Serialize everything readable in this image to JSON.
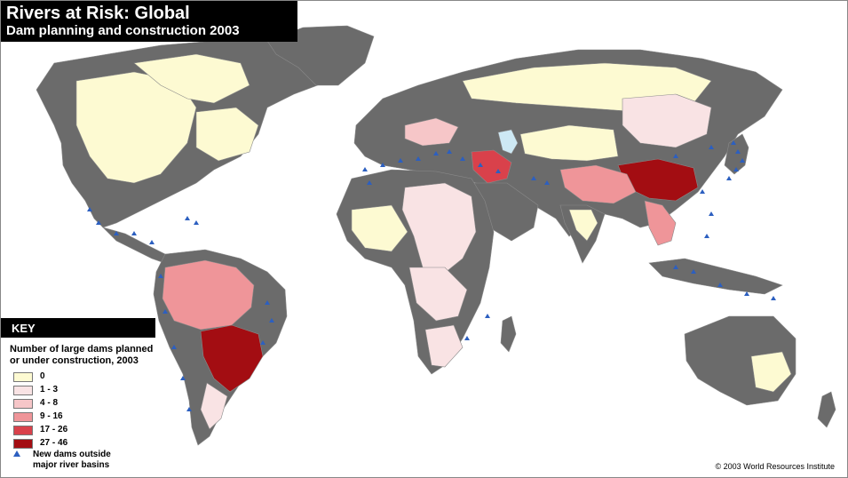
{
  "title": {
    "line1": "Rivers at Risk: Global",
    "line2": "Dam planning and construction 2003"
  },
  "key": {
    "heading": "KEY",
    "description_line1": "Number of large dams planned",
    "description_line2": "or under construction, 2003",
    "classes": [
      {
        "label": "0",
        "color": "#fdfad2"
      },
      {
        "label": "1 - 3",
        "color": "#f9e3e4"
      },
      {
        "label": "4 - 8",
        "color": "#f6c6c8"
      },
      {
        "label": "9 - 16",
        "color": "#ef9599"
      },
      {
        "label": "17 - 26",
        "color": "#d9414b"
      },
      {
        "label": "27 - 46",
        "color": "#a30d12"
      }
    ],
    "marker_label_line1": "New dams outside",
    "marker_label_line2": "major river basins",
    "marker_color": "#2c5fc0"
  },
  "credit": "© 2003 World Resources Institute",
  "colors": {
    "land_outside_basins": "#6b6b6b",
    "basin_border": "#8a8a8a",
    "ocean": "#ffffff",
    "inland_lake": "#cde8f4"
  }
}
